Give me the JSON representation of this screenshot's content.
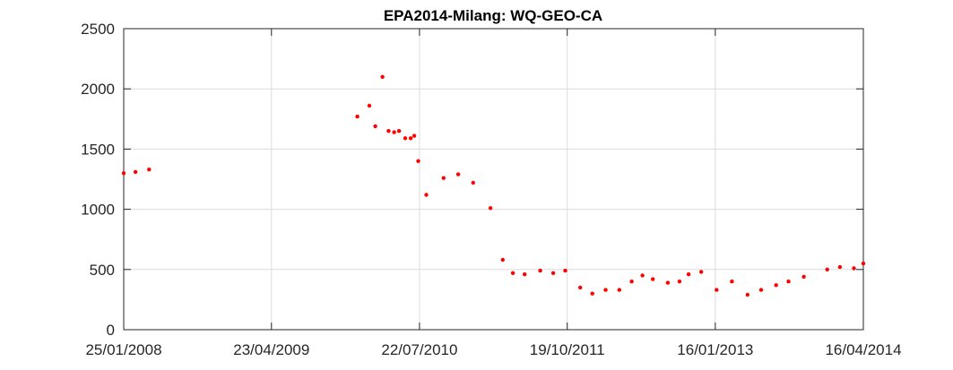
{
  "chart_data": {
    "type": "scatter",
    "title": "EPA2014-Milang: WQ-GEO-CA",
    "xlabel": "",
    "ylabel": "",
    "x_tick_labels": [
      "25/01/2008",
      "23/04/2009",
      "22/07/2010",
      "19/10/2011",
      "16/01/2013",
      "16/04/2014"
    ],
    "xlim": [
      "2008-01-25",
      "2014-04-16"
    ],
    "y_ticks": [
      0,
      500,
      1000,
      1500,
      2000,
      2500
    ],
    "ylim": [
      0,
      2500
    ],
    "grid": true,
    "marker_color": "#ff0000",
    "series": [
      {
        "x": [
          "2008-01-25",
          "2008-03-01",
          "2008-04-12",
          "2010-01-12",
          "2010-02-18",
          "2010-03-08",
          "2010-03-30",
          "2010-04-18",
          "2010-05-05",
          "2010-05-20",
          "2010-06-08",
          "2010-06-25",
          "2010-07-06",
          "2010-07-18",
          "2010-08-12",
          "2010-10-04",
          "2010-11-18",
          "2011-01-03",
          "2011-02-25",
          "2011-04-04",
          "2011-05-05",
          "2011-06-10",
          "2011-07-28",
          "2011-09-06",
          "2011-10-13",
          "2011-11-28",
          "2012-01-04",
          "2012-02-14",
          "2012-03-27",
          "2012-05-04",
          "2012-06-06",
          "2012-07-08",
          "2012-08-23",
          "2012-09-28",
          "2012-10-26",
          "2012-12-04",
          "2013-01-20",
          "2013-03-08",
          "2013-04-25",
          "2013-06-06",
          "2013-07-22",
          "2013-08-29",
          "2013-10-15",
          "2013-12-26",
          "2014-02-03",
          "2014-03-18",
          "2014-04-16"
        ],
        "y": [
          1300,
          1310,
          1330,
          1770,
          1860,
          1690,
          2100,
          1650,
          1640,
          1650,
          1590,
          1590,
          1610,
          1400,
          1120,
          1260,
          1290,
          1220,
          1010,
          580,
          470,
          460,
          490,
          470,
          490,
          350,
          300,
          330,
          330,
          400,
          450,
          420,
          390,
          400,
          460,
          480,
          330,
          400,
          290,
          330,
          370,
          400,
          440,
          500,
          520,
          510,
          550
        ]
      }
    ]
  }
}
